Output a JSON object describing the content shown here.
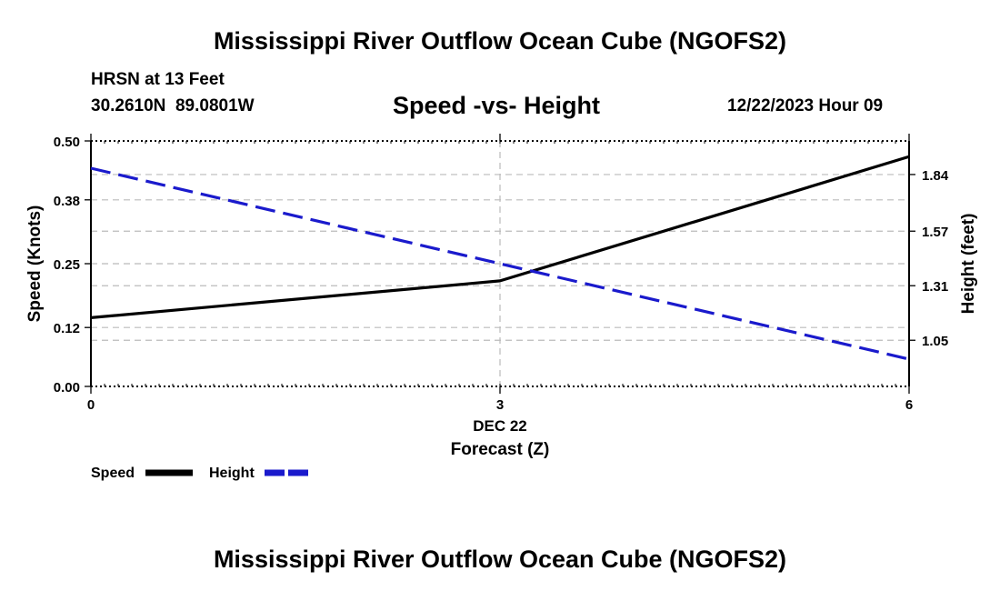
{
  "page": {
    "title": "Mississippi River Outflow Ocean Cube (NGOFS2)",
    "footer_title": "Mississippi River Outflow Ocean Cube (NGOFS2)"
  },
  "header": {
    "station": "HRSN at 13 Feet",
    "coords": "30.2610N  89.0801W",
    "date": "12/22/2023 Hour 09"
  },
  "chart_data": {
    "type": "line",
    "title": "Speed -vs- Height",
    "xlabel_top": "DEC 22",
    "xlabel": "Forecast (Z)",
    "ylabel": "Speed (Knots)",
    "ylabel_right": "Height (feet)",
    "xlim": [
      0,
      6
    ],
    "x_ticks": [
      0,
      3,
      6
    ],
    "x_tick_labels": [
      "0",
      "3",
      "6"
    ],
    "ylim": [
      0.0,
      0.5
    ],
    "y_ticks": [
      0.0,
      0.12,
      0.25,
      0.38,
      0.5
    ],
    "y_tick_labels": [
      "0.00",
      "0.12",
      "0.25",
      "0.38",
      "0.50"
    ],
    "ylim_right": [
      0.83,
      2.0
    ],
    "y_ticks_right": [
      1.05,
      1.31,
      1.57,
      1.84
    ],
    "y_tick_labels_right": [
      "1.05",
      "1.31",
      "1.57",
      "1.84"
    ],
    "grid": true,
    "series": [
      {
        "name": "Speed",
        "axis": "left",
        "style": "solid",
        "color": "#000000",
        "x": [
          0,
          3,
          6
        ],
        "values": [
          0.14,
          0.215,
          0.468
        ]
      },
      {
        "name": "Height",
        "axis": "right",
        "style": "dashed",
        "color": "#1a1acc",
        "x": [
          0,
          6
        ],
        "values": [
          1.87,
          0.96
        ]
      }
    ],
    "legend": {
      "position": "bottom-left",
      "labels": [
        "Speed",
        "Height"
      ]
    }
  }
}
